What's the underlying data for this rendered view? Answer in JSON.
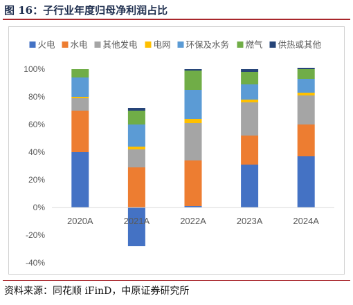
{
  "figure": {
    "title": "图 16：子行业年度归母净利润占比",
    "source": "资料来源：同花顺 iFinD，中原证券研究所"
  },
  "chart_data": {
    "type": "bar",
    "stacked": true,
    "categories": [
      "2020A",
      "2021A",
      "2022A",
      "2023A",
      "2024A"
    ],
    "series": [
      {
        "name": "火电",
        "color": "#4472c4",
        "values": [
          0.4,
          -0.28,
          0.01,
          0.31,
          0.37
        ]
      },
      {
        "name": "水电",
        "color": "#ed7d31",
        "values": [
          0.3,
          0.29,
          0.33,
          0.21,
          0.23
        ]
      },
      {
        "name": "其他发电",
        "color": "#a5a5a5",
        "values": [
          0.09,
          0.13,
          0.27,
          0.24,
          0.21
        ]
      },
      {
        "name": "电网",
        "color": "#ffc000",
        "values": [
          0.01,
          0.02,
          0.03,
          0.02,
          0.02
        ]
      },
      {
        "name": "环保及水务",
        "color": "#5b9bd5",
        "values": [
          0.14,
          0.16,
          0.21,
          0.11,
          0.1
        ]
      },
      {
        "name": "燃气",
        "color": "#70ad47",
        "values": [
          0.06,
          0.1,
          0.14,
          0.09,
          0.07
        ]
      },
      {
        "name": "供热或其他",
        "color": "#264478",
        "values": [
          0.0,
          0.02,
          0.01,
          0.02,
          0.01
        ]
      }
    ],
    "ylim": [
      -0.4,
      1.0
    ],
    "yticks": [
      -0.4,
      -0.2,
      0,
      0.2,
      0.4,
      0.6,
      0.8,
      1.0
    ],
    "ytick_labels": [
      "-40%",
      "-20%",
      "0%",
      "20%",
      "40%",
      "60%",
      "80%",
      "100%"
    ],
    "grid": false,
    "legend_position": "top"
  }
}
